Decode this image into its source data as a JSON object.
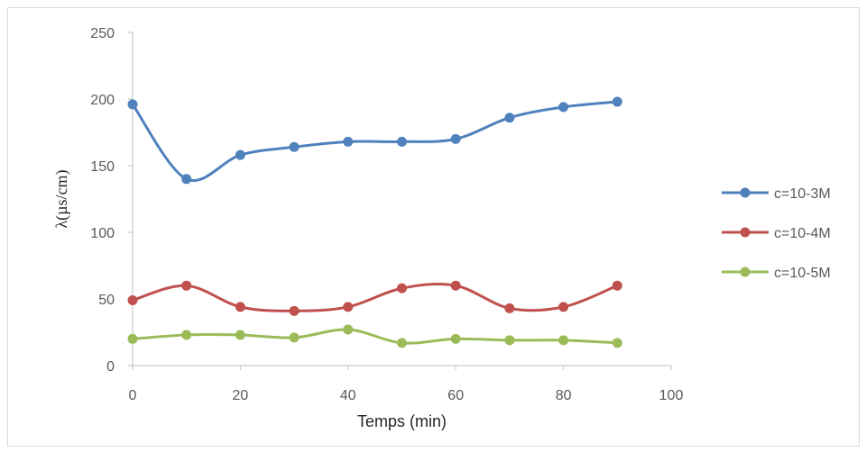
{
  "chart_data": {
    "type": "line",
    "xlabel": "Temps (min)",
    "ylabel": "λ(µs/cm)",
    "xlim": [
      0,
      100
    ],
    "ylim": [
      0,
      250
    ],
    "xticks": [
      0,
      20,
      40,
      60,
      80,
      100
    ],
    "yticks": [
      0,
      50,
      100,
      150,
      200,
      250
    ],
    "x": [
      0,
      10,
      20,
      30,
      40,
      50,
      60,
      70,
      80,
      90
    ],
    "legend_position": "right",
    "grid": false,
    "smooth": true,
    "series": [
      {
        "name": "c=10-3M",
        "color": "#4f81bd",
        "values": [
          196,
          140,
          158,
          164,
          168,
          168,
          170,
          186,
          194,
          198
        ]
      },
      {
        "name": "c=10-4M",
        "color": "#c0504d",
        "values": [
          49,
          60,
          44,
          41,
          44,
          58,
          60,
          43,
          44,
          60
        ]
      },
      {
        "name": "c=10-5M",
        "color": "#9bbb59",
        "values": [
          20,
          23,
          23,
          21,
          27,
          17,
          20,
          19,
          19,
          17
        ]
      }
    ]
  }
}
